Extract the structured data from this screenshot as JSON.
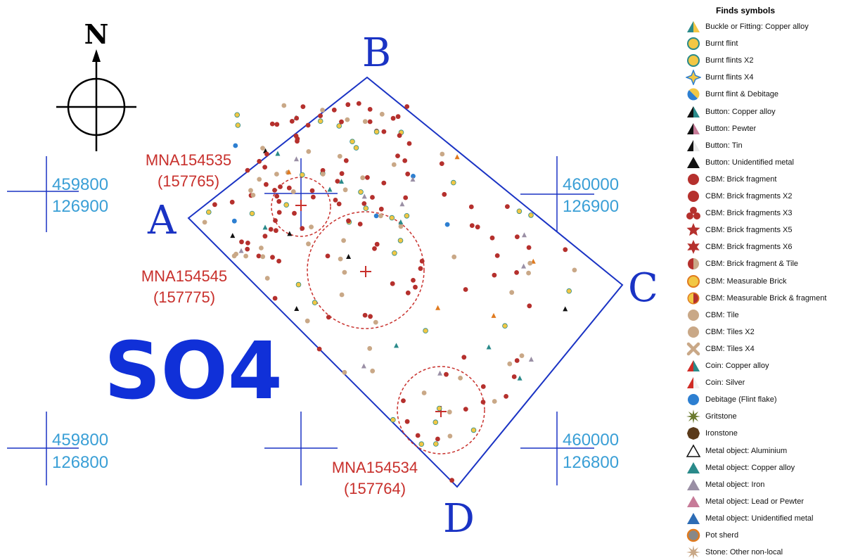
{
  "map": {
    "north_label": "N",
    "area_label": "SO4",
    "corners": {
      "a": "A",
      "b": "B",
      "c": "C",
      "d": "D"
    },
    "grid_refs": [
      {
        "easting": "459800",
        "northing": "126900"
      },
      {
        "easting": "460000",
        "northing": "126900"
      },
      {
        "easting": "459800",
        "northing": "126800"
      },
      {
        "easting": "460000",
        "northing": "126800"
      }
    ],
    "features": [
      {
        "code": "MNA154535",
        "id": "(157765)"
      },
      {
        "code": "MNA154545",
        "id": "(157775)"
      },
      {
        "code": "MNA154534",
        "id": "(157764)"
      }
    ],
    "colors": {
      "outline": "#1a33c4",
      "grid_label": "#3a9fd6",
      "feature_label": "#c8302c",
      "brick": "#b5302d",
      "tile": "#c9a887",
      "burnt_flint": "#f2c744",
      "debitage": "#2d7fd1"
    }
  },
  "legend": {
    "title": "Finds symbols",
    "items": [
      {
        "label": "Buckle or Fitting: Copper alloy",
        "icon": "split-triangle-teal-yellow"
      },
      {
        "label": "Burnt flint",
        "icon": "circle-yellow-teal-ring"
      },
      {
        "label": "Burnt flints X2",
        "icon": "circle-yellow-teal-ring"
      },
      {
        "label": "Burnt flints X4",
        "icon": "star4-yellow"
      },
      {
        "label": "Burnt flint & Debitage",
        "icon": "circle-split-blue-yellow"
      },
      {
        "label": "Button: Copper alloy",
        "icon": "split-triangle-black-teal"
      },
      {
        "label": "Button: Pewter",
        "icon": "split-triangle-black-pink"
      },
      {
        "label": "Button: Tin",
        "icon": "split-triangle-black-white"
      },
      {
        "label": "Button: Unidentified metal",
        "icon": "triangle-black"
      },
      {
        "label": "CBM: Brick fragment",
        "icon": "circle-red"
      },
      {
        "label": "CBM: Brick fragments X2",
        "icon": "circle-red"
      },
      {
        "label": "CBM: Brick fragments X3",
        "icon": "trefoil-red"
      },
      {
        "label": "CBM: Brick fragments X5",
        "icon": "star5-red"
      },
      {
        "label": "CBM: Brick fragments X6",
        "icon": "star6-red"
      },
      {
        "label": "CBM: Brick fragment & Tile",
        "icon": "circle-split-red-tan"
      },
      {
        "label": "CBM: Measurable Brick",
        "icon": "circle-yellow-orange-ring"
      },
      {
        "label": "CBM: Measurable Brick & fragment",
        "icon": "circle-split-yellow-red"
      },
      {
        "label": "CBM: Tile",
        "icon": "circle-tan"
      },
      {
        "label": "CBM: Tiles X2",
        "icon": "circle-tan"
      },
      {
        "label": "CBM: Tiles X4",
        "icon": "cross-tan"
      },
      {
        "label": "Coin: Copper alloy",
        "icon": "split-triangle-red-teal"
      },
      {
        "label": "Coin: Silver",
        "icon": "split-triangle-red-white"
      },
      {
        "label": "Debitage (Flint flake)",
        "icon": "circle-blue"
      },
      {
        "label": "Gritstone",
        "icon": "starburst-olive"
      },
      {
        "label": "Ironstone",
        "icon": "octagon-brown"
      },
      {
        "label": "Metal object: Aluminium",
        "icon": "triangle-outline"
      },
      {
        "label": "Metal object: Copper alloy",
        "icon": "triangle-teal"
      },
      {
        "label": "Metal object: Iron",
        "icon": "triangle-grey"
      },
      {
        "label": "Metal object: Lead or Pewter",
        "icon": "triangle-pink"
      },
      {
        "label": "Metal object: Unidentified metal",
        "icon": "triangle-blue"
      },
      {
        "label": "Pot sherd",
        "icon": "circle-grey-orange-ring"
      },
      {
        "label": "Stone: Other non-local",
        "icon": "starburst-tan"
      }
    ]
  }
}
